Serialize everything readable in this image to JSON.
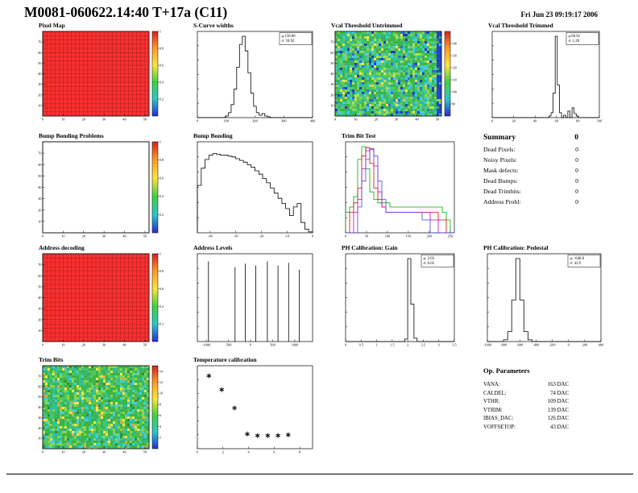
{
  "header": {
    "title": "M0081-060622.14:40 T+17a (C11)",
    "datetime": "Fri Jun 23 09:19:17 2006"
  },
  "summary": {
    "heading": "Summary",
    "total": "0",
    "items": [
      {
        "label": "Dead Pixels:",
        "value": "0"
      },
      {
        "label": "Noisy Pixels:",
        "value": "0"
      },
      {
        "label": "Mask defects:",
        "value": "0"
      },
      {
        "label": "Dead Bumps:",
        "value": "0"
      },
      {
        "label": "Dead Trimbits:",
        "value": "0"
      },
      {
        "label": "Address Probl:",
        "value": "0"
      }
    ]
  },
  "op_parameters": {
    "heading": "Op. Parameters",
    "items": [
      {
        "label": "VANA:",
        "value": "163 DAC"
      },
      {
        "label": "CALDEL:",
        "value": "74 DAC"
      },
      {
        "label": "VTHR:",
        "value": "109 DAC"
      },
      {
        "label": "VTRIM:",
        "value": "139 DAC"
      },
      {
        "label": "IBIAS_DAC:",
        "value": "126 DAC"
      },
      {
        "label": "VOFFSETOP:",
        "value": "43 DAC"
      }
    ]
  },
  "chart_data": [
    {
      "id": "pixel-map",
      "title": "Pixel Map",
      "type": "heatmap",
      "variant": "red-grid",
      "fill": "#f73030",
      "x_range": [
        0,
        52
      ],
      "y_range": [
        0,
        80
      ],
      "x_ticks": [
        0,
        10,
        20,
        30,
        40,
        50
      ],
      "y_ticks": [
        10,
        20,
        30,
        40,
        50,
        60,
        70
      ],
      "colorbar": {
        "range": [
          0,
          1
        ],
        "ticks": [
          0.2,
          0.4,
          0.6,
          0.8,
          1
        ]
      }
    },
    {
      "id": "scurve-widths",
      "title": "S-Curve widths",
      "type": "histogram",
      "color": "#000000",
      "x_range": [
        0,
        400
      ],
      "x_ticks": [
        0,
        100,
        200,
        300,
        400
      ],
      "values": [
        0,
        0,
        0,
        0,
        0,
        0,
        0,
        0,
        0,
        0,
        0.02,
        0.06,
        0.16,
        0.35,
        0.62,
        0.9,
        1,
        0.82,
        0.55,
        0.3,
        0.14,
        0.06,
        0.03,
        0.05,
        0.02,
        0.01,
        0,
        0,
        0,
        0,
        0,
        0,
        0,
        0,
        0,
        0,
        0,
        0,
        0,
        0,
        0
      ],
      "stats": [
        "μ:158.86",
        "σ: 18.92"
      ]
    },
    {
      "id": "vcal-untrimmed",
      "title": "Vcal Threshold Untrimmed",
      "type": "heatmap",
      "variant": "noise",
      "seed": 11,
      "palette": [
        [
          "#3cb44a",
          30
        ],
        [
          "#57c766",
          18
        ],
        [
          "#2fbf9f",
          16
        ],
        [
          "#45cdd8",
          10
        ],
        [
          "#8fd44a",
          10
        ],
        [
          "#b5e04e",
          5
        ],
        [
          "#ffe34d",
          3
        ],
        [
          "#2f6fd8",
          4
        ],
        [
          "#1f3fc0",
          4
        ]
      ],
      "right_band": "#2744cc",
      "x_range": [
        0,
        52
      ],
      "y_range": [
        0,
        80
      ],
      "x_ticks": [
        0,
        10,
        20,
        30,
        40,
        50
      ],
      "y_ticks": [
        10,
        20,
        30,
        40,
        50,
        60,
        70
      ],
      "colorbar": {
        "range": [
          80,
          150
        ],
        "ticks": [
          90,
          100,
          110,
          120,
          130,
          140
        ]
      }
    },
    {
      "id": "vcal-trimmed",
      "title": "Vcal Threshold Trimmed",
      "type": "histogram",
      "color": "#000000",
      "x_range": [
        0,
        100
      ],
      "x_ticks": [
        0,
        20,
        40,
        60,
        80,
        100
      ],
      "values": [
        0,
        0,
        0,
        0,
        0,
        0,
        0,
        0,
        0,
        0,
        0,
        0,
        0,
        0,
        0,
        0,
        0,
        0,
        0,
        0,
        0,
        0,
        0,
        0,
        0,
        0,
        0,
        0.02,
        0.06,
        0.3,
        1,
        0.4,
        0.06,
        0,
        0.03,
        0,
        0.08,
        0,
        0.12,
        0.05,
        0.02,
        0,
        0,
        0,
        0,
        0,
        0,
        0,
        0,
        0,
        0
      ],
      "stats": [
        "μ:60.61",
        "σ: 1.28"
      ]
    },
    {
      "id": "bump-problems",
      "title": "Bump Bonding Problems",
      "type": "heatmap",
      "variant": "empty",
      "x_range": [
        0,
        52
      ],
      "y_range": [
        0,
        80
      ],
      "x_ticks": [
        0,
        10,
        20,
        30,
        40,
        50
      ],
      "y_ticks": [
        10,
        20,
        30,
        40,
        50,
        60,
        70
      ],
      "colorbar": {
        "range": [
          0,
          1
        ],
        "ticks": [
          0.2,
          0.4,
          0.6,
          0.8,
          1
        ]
      }
    },
    {
      "id": "bump-bonding",
      "title": "Bump Bonding",
      "type": "histogram",
      "color": "#000000",
      "x_range": [
        -45,
        0
      ],
      "x_ticks": [
        -40,
        -30,
        -20,
        -10,
        0
      ],
      "values": [
        0.55,
        0.75,
        0.85,
        0.9,
        0.92,
        0.91,
        0.9,
        0.9,
        0.89,
        0.88,
        0.86,
        0.84,
        0.82,
        0.79,
        0.76,
        0.72,
        0.68,
        0.63,
        0.58,
        0.52,
        0.46,
        0.4,
        0.34,
        0.28,
        0.2,
        0.3,
        0.34,
        0.12,
        0.04,
        0.01
      ]
    },
    {
      "id": "trimbit-test",
      "title": "Trim Bit Test",
      "type": "multi-histogram",
      "ylog": true,
      "x_range": [
        0,
        260
      ],
      "x_ticks": [
        0,
        50,
        100,
        150,
        200,
        250
      ],
      "series": [
        {
          "name": "trim-green",
          "color": "#00aa00",
          "values": [
            0.02,
            0.03,
            0.06,
            0.5,
            1,
            0.3,
            0.08,
            0.05,
            0.04,
            0.04,
            0.04,
            0.03,
            0.03,
            0.03,
            0.03,
            0.03,
            0.03,
            0.03,
            0.03,
            0.03,
            0.03,
            0.03,
            0.03,
            0.03,
            0.02,
            0.01,
            0
          ]
        },
        {
          "name": "trim-red",
          "color": "#dd0000",
          "values": [
            0,
            0.02,
            0.04,
            0.1,
            0.6,
            0.95,
            0.4,
            0.1,
            0.05,
            0.03,
            0.02,
            0.02,
            0.02,
            0.02,
            0.02,
            0.02,
            0.02,
            0.02,
            0.02,
            0.02,
            0.02,
            0.02,
            0.02,
            0.01,
            0.01,
            0,
            0
          ]
        },
        {
          "name": "trim-magenta",
          "color": "#cc00cc",
          "values": [
            0,
            0,
            0.02,
            0.05,
            0.3,
            0.8,
            0.9,
            0.35,
            0.08,
            0.03,
            0.02,
            0.02,
            0.02,
            0.02,
            0.02,
            0.02,
            0.02,
            0.02,
            0.02,
            0.02,
            0.02,
            0.01,
            0.01,
            0,
            0,
            0,
            0
          ]
        },
        {
          "name": "trim-blue",
          "color": "#4444dd",
          "values": [
            0,
            0,
            0,
            0.03,
            0.15,
            0.5,
            0.85,
            0.6,
            0.15,
            0.05,
            0.02,
            0.02,
            0.02,
            0.02,
            0.02,
            0.02,
            0.02,
            0.02,
            0.02,
            0.01,
            0.01,
            0,
            0,
            0,
            0,
            0,
            0
          ]
        }
      ]
    },
    {
      "id": "address-decoding",
      "title": "Address decoding",
      "type": "heatmap",
      "variant": "red-grid",
      "fill": "#f73030",
      "x_range": [
        0,
        52
      ],
      "y_range": [
        0,
        80
      ],
      "x_ticks": [
        0,
        10,
        20,
        30,
        40,
        50
      ],
      "y_ticks": [
        10,
        20,
        30,
        40,
        50,
        60,
        70
      ],
      "colorbar": {
        "range": [
          0,
          1
        ],
        "ticks": [
          0.2,
          0.4,
          0.6,
          0.8,
          1
        ]
      }
    },
    {
      "id": "address-levels",
      "title": "Address Levels",
      "type": "spikes",
      "x_range": [
        -1200,
        1400
      ],
      "x_ticks": [
        -1000,
        -500,
        0,
        500,
        1000
      ],
      "spikes": [
        [
          -950,
          0.95
        ],
        [
          -350,
          0.88
        ],
        [
          -120,
          0.92
        ],
        [
          120,
          0.9
        ],
        [
          380,
          0.95
        ],
        [
          620,
          0.9
        ],
        [
          860,
          0.93
        ],
        [
          1100,
          0.85
        ]
      ]
    },
    {
      "id": "ph-gain",
      "title": "PH Calibration: Gain",
      "type": "histogram",
      "color": "#000000",
      "x_range": [
        0,
        3.5
      ],
      "x_ticks": [
        0,
        0.5,
        1,
        1.5,
        2,
        2.5,
        3,
        3.5
      ],
      "values": [
        0,
        0,
        0,
        0,
        0,
        0,
        0,
        0,
        0,
        0,
        0,
        0,
        0,
        0,
        0,
        0,
        0,
        0,
        0,
        0.03,
        1,
        0.45,
        0.04,
        0,
        0,
        0,
        0,
        0,
        0,
        0,
        0,
        0,
        0,
        0,
        0
      ],
      "stats": [
        "μ: 2.03",
        "σ: 0.05"
      ]
    },
    {
      "id": "ph-pedestal",
      "title": "PH Calibration: Pedestal",
      "type": "histogram",
      "color": "#000000",
      "x_range": [
        -1000,
        400
      ],
      "x_ticks": [
        -1000,
        -800,
        -600,
        -400,
        -200,
        0,
        200,
        400
      ],
      "values": [
        0,
        0,
        0,
        0,
        0.02,
        0.12,
        0.5,
        1,
        0.5,
        0.12,
        0.02,
        0,
        0,
        0,
        0,
        0,
        0,
        0,
        0,
        0,
        0,
        0,
        0,
        0,
        0,
        0,
        0,
        0
      ],
      "stats": [
        "μ: -648.8",
        "σ: 43.9"
      ]
    },
    {
      "id": "trim-bits",
      "title": "Trim Bits",
      "type": "heatmap",
      "variant": "noise",
      "seed": 29,
      "palette": [
        [
          "#3cb44a",
          34
        ],
        [
          "#52c55f",
          20
        ],
        [
          "#2fbf9f",
          14
        ],
        [
          "#8fd44a",
          12
        ],
        [
          "#ffe34d",
          6
        ],
        [
          "#45cdd8",
          8
        ],
        [
          "#e8a63c",
          2
        ],
        [
          "#2f8f3f",
          4
        ]
      ],
      "x_range": [
        0,
        52
      ],
      "y_range": [
        0,
        80
      ],
      "x_ticks": [
        0,
        10,
        20,
        30,
        40,
        50
      ],
      "y_ticks": [
        10,
        20,
        30,
        40,
        50,
        60,
        70
      ],
      "colorbar": {
        "range": [
          0,
          15
        ],
        "ticks": [
          2,
          4,
          6,
          8,
          10,
          12,
          14
        ]
      }
    },
    {
      "id": "temp-calibration",
      "title": "Temperature calibration",
      "type": "scatter",
      "x_range": [
        0,
        9
      ],
      "x_ticks": [
        0,
        2,
        4,
        6,
        8
      ],
      "points": [
        [
          0.9,
          0.92
        ],
        [
          1.9,
          0.74
        ],
        [
          2.9,
          0.5
        ],
        [
          3.9,
          0.16
        ],
        [
          4.7,
          0.14
        ],
        [
          5.5,
          0.14
        ],
        [
          6.3,
          0.14
        ],
        [
          7.1,
          0.15
        ]
      ]
    }
  ]
}
